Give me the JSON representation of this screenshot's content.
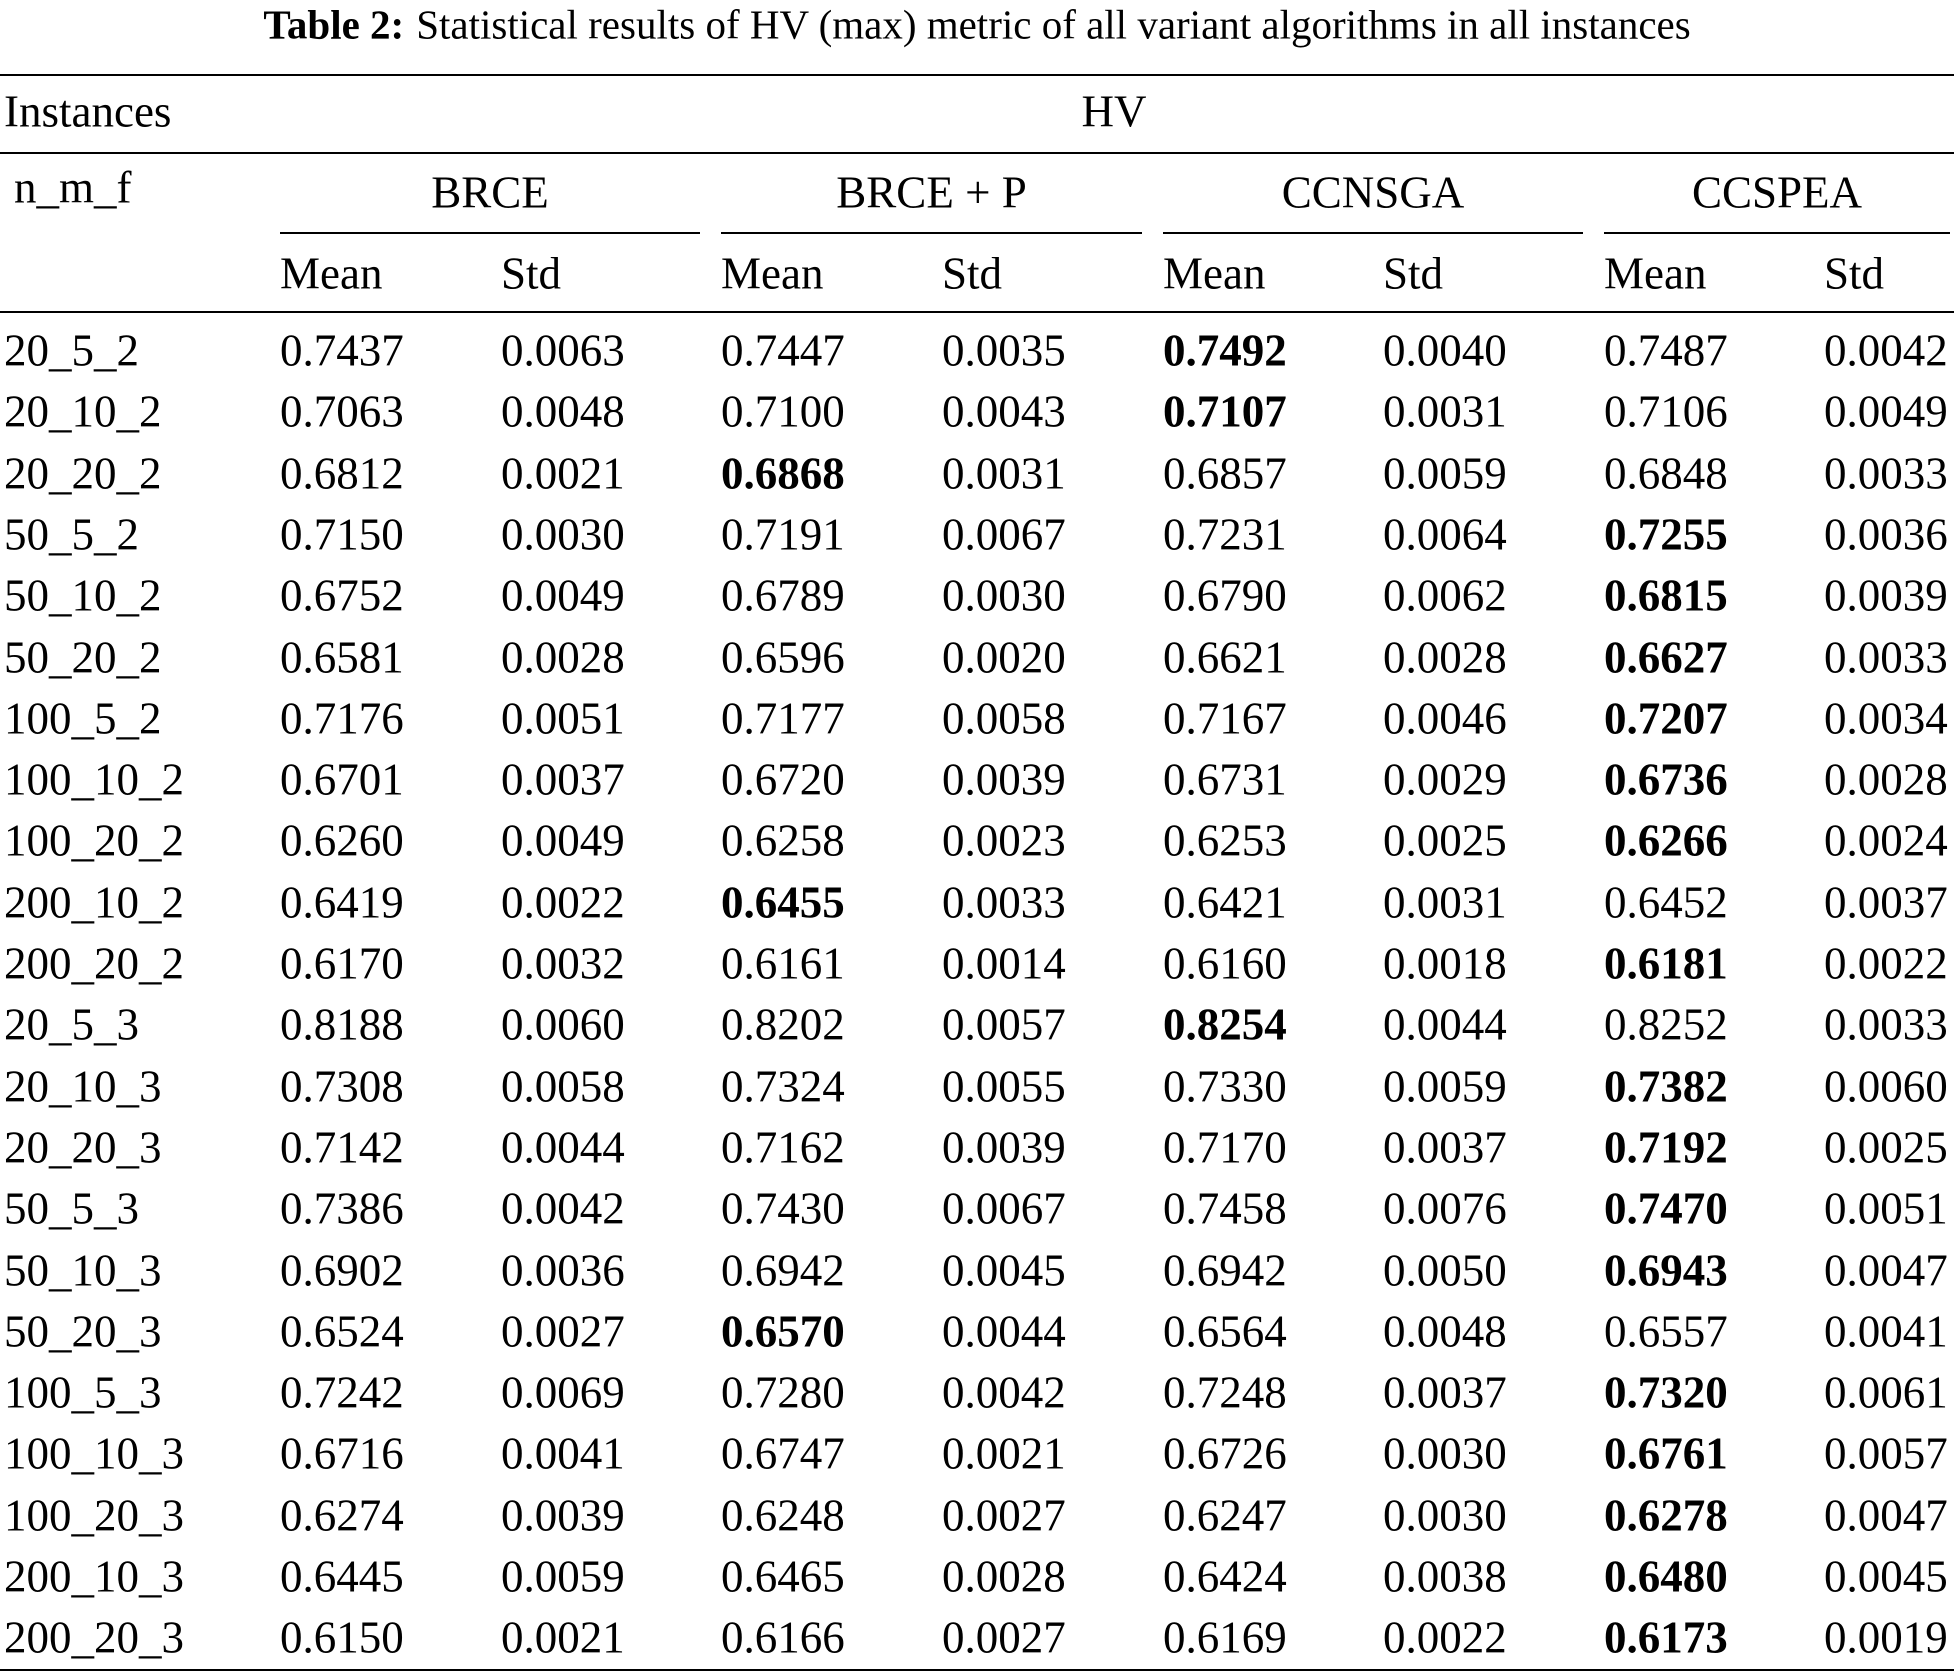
{
  "caption": {
    "label": "Table 2:",
    "text": "Statistical results of HV (max) metric of all variant algorithms in all instances"
  },
  "table": {
    "stub_header": "Instances",
    "stub_subheader": "n_m_f",
    "metric": "HV",
    "groups": [
      "BRCE",
      "BRCE + P",
      "CCNSGA",
      "CCSPEA"
    ],
    "subcolumns": [
      "Mean",
      "Std"
    ],
    "rows": [
      [
        "20_5_2",
        "0.7437",
        "0.0063",
        "0.7447",
        "0.0035",
        "0.7492",
        "0.0040",
        "0.7487",
        "0.0042"
      ],
      [
        "20_10_2",
        "0.7063",
        "0.0048",
        "0.7100",
        "0.0043",
        "0.7107",
        "0.0031",
        "0.7106",
        "0.0049"
      ],
      [
        "20_20_2",
        "0.6812",
        "0.0021",
        "0.6868",
        "0.0031",
        "0.6857",
        "0.0059",
        "0.6848",
        "0.0033"
      ],
      [
        "50_5_2",
        "0.7150",
        "0.0030",
        "0.7191",
        "0.0067",
        "0.7231",
        "0.0064",
        "0.7255",
        "0.0036"
      ],
      [
        "50_10_2",
        "0.6752",
        "0.0049",
        "0.6789",
        "0.0030",
        "0.6790",
        "0.0062",
        "0.6815",
        "0.0039"
      ],
      [
        "50_20_2",
        "0.6581",
        "0.0028",
        "0.6596",
        "0.0020",
        "0.6621",
        "0.0028",
        "0.6627",
        "0.0033"
      ],
      [
        "100_5_2",
        "0.7176",
        "0.0051",
        "0.7177",
        "0.0058",
        "0.7167",
        "0.0046",
        "0.7207",
        "0.0034"
      ],
      [
        "100_10_2",
        "0.6701",
        "0.0037",
        "0.6720",
        "0.0039",
        "0.6731",
        "0.0029",
        "0.6736",
        "0.0028"
      ],
      [
        "100_20_2",
        "0.6260",
        "0.0049",
        "0.6258",
        "0.0023",
        "0.6253",
        "0.0025",
        "0.6266",
        "0.0024"
      ],
      [
        "200_10_2",
        "0.6419",
        "0.0022",
        "0.6455",
        "0.0033",
        "0.6421",
        "0.0031",
        "0.6452",
        "0.0037"
      ],
      [
        "200_20_2",
        "0.6170",
        "0.0032",
        "0.6161",
        "0.0014",
        "0.6160",
        "0.0018",
        "0.6181",
        "0.0022"
      ],
      [
        "20_5_3",
        "0.8188",
        "0.0060",
        "0.8202",
        "0.0057",
        "0.8254",
        "0.0044",
        "0.8252",
        "0.0033"
      ],
      [
        "20_10_3",
        "0.7308",
        "0.0058",
        "0.7324",
        "0.0055",
        "0.7330",
        "0.0059",
        "0.7382",
        "0.0060"
      ],
      [
        "20_20_3",
        "0.7142",
        "0.0044",
        "0.7162",
        "0.0039",
        "0.7170",
        "0.0037",
        "0.7192",
        "0.0025"
      ],
      [
        "50_5_3",
        "0.7386",
        "0.0042",
        "0.7430",
        "0.0067",
        "0.7458",
        "0.0076",
        "0.7470",
        "0.0051"
      ],
      [
        "50_10_3",
        "0.6902",
        "0.0036",
        "0.6942",
        "0.0045",
        "0.6942",
        "0.0050",
        "0.6943",
        "0.0047"
      ],
      [
        "50_20_3",
        "0.6524",
        "0.0027",
        "0.6570",
        "0.0044",
        "0.6564",
        "0.0048",
        "0.6557",
        "0.0041"
      ],
      [
        "100_5_3",
        "0.7242",
        "0.0069",
        "0.7280",
        "0.0042",
        "0.7248",
        "0.0037",
        "0.7320",
        "0.0061"
      ],
      [
        "100_10_3",
        "0.6716",
        "0.0041",
        "0.6747",
        "0.0021",
        "0.6726",
        "0.0030",
        "0.6761",
        "0.0057"
      ],
      [
        "100_20_3",
        "0.6274",
        "0.0039",
        "0.6248",
        "0.0027",
        "0.6247",
        "0.0030",
        "0.6278",
        "0.0047"
      ],
      [
        "200_10_3",
        "0.6445",
        "0.0059",
        "0.6465",
        "0.0028",
        "0.6424",
        "0.0038",
        "0.6480",
        "0.0045"
      ],
      [
        "200_20_3",
        "0.6150",
        "0.0021",
        "0.6166",
        "0.0027",
        "0.6169",
        "0.0022",
        "0.6173",
        "0.0019"
      ]
    ],
    "bold_column": [
      5,
      5,
      3,
      7,
      7,
      7,
      7,
      7,
      7,
      3,
      7,
      5,
      7,
      7,
      7,
      7,
      3,
      7,
      7,
      7,
      7,
      7
    ]
  }
}
